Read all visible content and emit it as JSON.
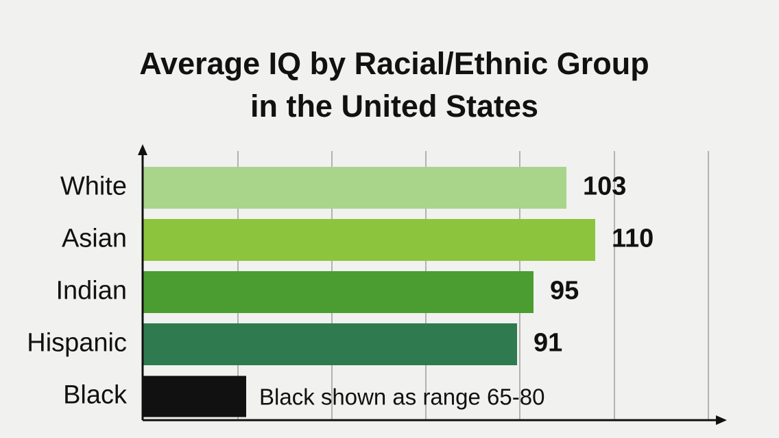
{
  "chart_data": {
    "type": "bar",
    "orientation": "horizontal",
    "title": [
      "Average IQ by Racial/Ethnic Group",
      "in the United States"
    ],
    "categories": [
      "White",
      "Asian",
      "Indian",
      "Hispanic",
      "Black"
    ],
    "values": [
      103,
      110,
      95,
      91,
      null
    ],
    "colors": [
      "#a9d58b",
      "#8dc43d",
      "#4b9d31",
      "#2f7a4e",
      "#111111"
    ],
    "xlim": [
      0,
      140
    ],
    "annotation": "Black shown as range 65-80"
  }
}
